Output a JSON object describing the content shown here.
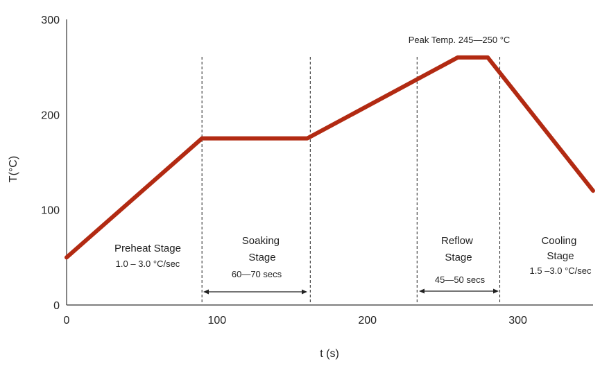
{
  "chart_data": {
    "type": "line",
    "title": "",
    "xlabel": "t (s)",
    "ylabel": "T(°C)",
    "xlim": [
      0,
      350
    ],
    "ylim": [
      0,
      300
    ],
    "xticks": [
      0,
      100,
      200,
      300
    ],
    "yticks": [
      0,
      100,
      200,
      300
    ],
    "grid": false,
    "series": [
      {
        "color": "#b22a12",
        "x": [
          0,
          90,
          160,
          260,
          280,
          350
        ],
        "y": [
          50,
          175,
          175,
          260,
          260,
          120
        ]
      }
    ],
    "stage_boundaries": [
      90,
      162,
      233,
      288
    ],
    "stages": [
      {
        "name": "Preheat Stage",
        "detail": "1.0 – 3.0 °C/sec"
      },
      {
        "name": "Soaking Stage",
        "detail": "60—70 secs"
      },
      {
        "name": "Reflow Stage",
        "detail": "45—50 secs"
      },
      {
        "name": "Cooling Stage",
        "detail": "1.5 –3.0 °C/sec"
      }
    ],
    "annotations": {
      "peak": "Peak Temp. 245—250 °C"
    }
  }
}
